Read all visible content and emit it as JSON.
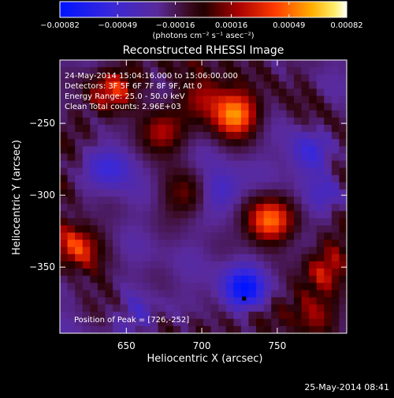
{
  "chart_data": {
    "type": "heatmap",
    "title": "Reconstructed RHESSI Image",
    "xlabel": "Heliocentric X (arcsec)",
    "ylabel": "Heliocentric Y (arcsec)",
    "xlim": [
      606,
      796
    ],
    "ylim": [
      -396,
      -206
    ],
    "x_ticks": [
      650,
      700,
      750
    ],
    "y_ticks": [
      -250,
      -300,
      -350
    ],
    "x_tick_labels": [
      "650",
      "700",
      "750"
    ],
    "y_tick_labels": [
      "−250",
      "−300",
      "−350"
    ],
    "colorbar": {
      "min": -0.00082,
      "max": 0.00082,
      "tick_values": [
        -0.00082,
        -0.00049,
        -0.00016,
        0.00016,
        0.00049,
        0.00082
      ],
      "tick_labels": [
        "−0.00082",
        "−0.00049",
        "−0.00016",
        "0.00016",
        "0.00049",
        "0.00082"
      ],
      "units_label": "(photons cm⁻² s⁻¹ asec⁻²)",
      "colormap": "rainbow-like: blue → purple → dark red → red → orange → yellow → white"
    },
    "annotations": [
      "24-May-2014 15:04:16.000 to 15:06:00.000",
      "Detectors: 3F 5F 6F 7F 8F 9F, Att 0",
      "Energy Range: 25.0 - 50.0 keV",
      "Clean     Total counts: 2.96E+03"
    ],
    "peak_label": "Position of Peak = [726,-252]",
    "peak": [
      726,
      -252
    ],
    "sources": [
      {
        "x": 722,
        "y": -244,
        "amplitude": 0.0008
      },
      {
        "x": 744,
        "y": -318,
        "amplitude": 0.00075
      },
      {
        "x": 672,
        "y": -257,
        "amplitude": 0.00048
      },
      {
        "x": 700,
        "y": -232,
        "amplitude": 0.00042
      },
      {
        "x": 640,
        "y": -226,
        "amplitude": 0.0004
      },
      {
        "x": 618,
        "y": -335,
        "amplitude": 0.0005
      },
      {
        "x": 690,
        "y": -300,
        "amplitude": 0.00035
      },
      {
        "x": 775,
        "y": -384,
        "amplitude": 0.0004
      },
      {
        "x": 782,
        "y": -350,
        "amplitude": 0.00035
      }
    ],
    "negatives": [
      {
        "x": 728,
        "y": -365,
        "amplitude": -0.00078
      },
      {
        "x": 640,
        "y": -280,
        "amplitude": -0.00045
      },
      {
        "x": 712,
        "y": -297,
        "amplitude": -0.0004
      },
      {
        "x": 657,
        "y": -385,
        "amplitude": -0.0004
      },
      {
        "x": 772,
        "y": -270,
        "amplitude": -0.00045
      },
      {
        "x": 786,
        "y": -298,
        "amplitude": -0.0003
      }
    ]
  },
  "footer_timestamp": "25-May-2014 08:41"
}
